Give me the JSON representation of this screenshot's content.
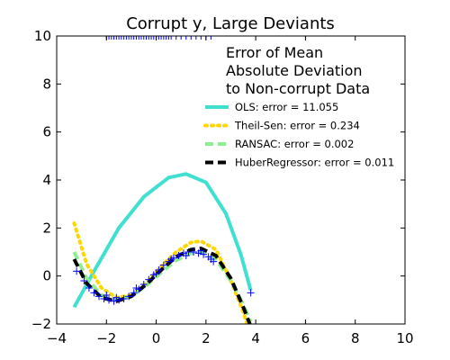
{
  "chart_data": {
    "type": "line",
    "title": "Corrupt y, Large Deviants",
    "xlabel": "",
    "ylabel": "",
    "xlim": [
      -4,
      10
    ],
    "ylim": [
      -2,
      10
    ],
    "xticks": [
      -4,
      -2,
      0,
      2,
      4,
      6,
      8,
      10
    ],
    "yticks": [
      -2,
      0,
      2,
      4,
      6,
      8,
      10
    ],
    "grid": false,
    "legend": {
      "title": "Error of Mean\nAbsolute Deviation\nto Non-corrupt Data",
      "placement": "upper-right"
    },
    "series": [
      {
        "name": "OLS: error = 11.055",
        "style": "solid",
        "color": "#40e0d0",
        "x": [
          -3.3,
          -2.5,
          -1.5,
          -0.5,
          0.5,
          1.2,
          2.0,
          2.8,
          3.4,
          3.8
        ],
        "y": [
          -1.3,
          0.2,
          2.0,
          3.3,
          4.1,
          4.25,
          3.9,
          2.6,
          0.9,
          -0.6
        ]
      },
      {
        "name": "Theil-Sen: error = 0.234",
        "style": "dotted",
        "color": "#ffd700",
        "x": [
          -3.3,
          -2.8,
          -2.2,
          -1.6,
          -1.0,
          -0.4,
          0.2,
          0.8,
          1.4,
          1.8,
          2.4,
          3.0,
          3.5,
          3.8
        ],
        "y": [
          2.2,
          0.5,
          -0.5,
          -0.9,
          -0.8,
          -0.3,
          0.4,
          1.0,
          1.4,
          1.45,
          1.1,
          -0.2,
          -1.5,
          -2.5
        ]
      },
      {
        "name": "RANSAC: error = 0.002",
        "style": "dashed",
        "color": "#90ee90",
        "x": [
          -3.3,
          -2.8,
          -2.2,
          -1.6,
          -1.0,
          -0.4,
          0.2,
          0.8,
          1.4,
          1.8,
          2.4,
          3.0,
          3.5,
          3.8
        ],
        "y": [
          1.0,
          -0.1,
          -0.8,
          -1.0,
          -0.85,
          -0.4,
          0.15,
          0.65,
          0.95,
          1.0,
          0.7,
          -0.2,
          -1.2,
          -1.9
        ]
      },
      {
        "name": "HuberRegressor: error = 0.011",
        "style": "dashed",
        "color": "#000000",
        "x": [
          -3.3,
          -2.8,
          -2.2,
          -1.6,
          -1.0,
          -0.4,
          0.2,
          0.8,
          1.4,
          1.8,
          2.4,
          3.0,
          3.5,
          3.8
        ],
        "y": [
          0.7,
          -0.3,
          -0.9,
          -1.05,
          -0.85,
          -0.35,
          0.25,
          0.8,
          1.1,
          1.15,
          0.85,
          -0.1,
          -1.3,
          -2.1
        ]
      }
    ],
    "scatter": {
      "marker": "+",
      "color": "#0000ff",
      "points": [
        [
          -3.2,
          0.2
        ],
        [
          -2.9,
          -0.2
        ],
        [
          -2.7,
          -0.5
        ],
        [
          -2.5,
          -0.7
        ],
        [
          -2.3,
          -0.85
        ],
        [
          -2.1,
          -0.95
        ],
        [
          -1.9,
          -1.0
        ],
        [
          -1.7,
          -1.05
        ],
        [
          -1.5,
          -1.0
        ],
        [
          -1.3,
          -0.95
        ],
        [
          -1.1,
          -0.85
        ],
        [
          -0.9,
          -0.7
        ],
        [
          -0.7,
          -0.55
        ],
        [
          -0.5,
          -0.35
        ],
        [
          -0.3,
          -0.15
        ],
        [
          -0.1,
          0.05
        ],
        [
          0.1,
          0.25
        ],
        [
          0.3,
          0.45
        ],
        [
          0.5,
          0.6
        ],
        [
          0.7,
          0.75
        ],
        [
          0.9,
          0.85
        ],
        [
          1.1,
          0.95
        ],
        [
          1.3,
          1.0
        ],
        [
          1.5,
          1.0
        ],
        [
          1.7,
          0.95
        ],
        [
          1.9,
          0.9
        ],
        [
          2.1,
          0.8
        ],
        [
          2.3,
          0.6
        ],
        [
          -2.0,
          -0.8
        ],
        [
          -1.6,
          -0.9
        ],
        [
          -0.8,
          -0.5
        ],
        [
          0.0,
          0.1
        ],
        [
          0.6,
          0.7
        ],
        [
          1.2,
          0.85
        ],
        [
          1.8,
          1.05
        ],
        [
          2.2,
          0.7
        ],
        [
          3.8,
          -0.7
        ],
        [
          -2.0,
          10.0
        ],
        [
          -1.9,
          10.0
        ],
        [
          -1.8,
          10.0
        ],
        [
          -1.7,
          10.0
        ],
        [
          -1.6,
          10.0
        ],
        [
          -1.5,
          10.0
        ],
        [
          -1.4,
          10.0
        ],
        [
          -1.3,
          10.0
        ],
        [
          -1.2,
          10.0
        ],
        [
          -1.1,
          10.0
        ],
        [
          -1.0,
          10.0
        ],
        [
          -0.9,
          10.0
        ],
        [
          -0.8,
          10.0
        ],
        [
          -0.7,
          10.0
        ],
        [
          -0.6,
          10.0
        ],
        [
          -0.5,
          10.0
        ],
        [
          -0.4,
          10.0
        ],
        [
          -0.3,
          10.0
        ],
        [
          -0.2,
          10.0
        ],
        [
          -0.1,
          10.0
        ],
        [
          0.0,
          10.0
        ],
        [
          0.1,
          10.0
        ],
        [
          0.2,
          10.0
        ],
        [
          0.3,
          10.0
        ],
        [
          0.4,
          10.0
        ],
        [
          0.5,
          10.0
        ],
        [
          0.6,
          10.0
        ],
        [
          0.8,
          10.0
        ],
        [
          1.0,
          10.0
        ],
        [
          1.2,
          10.0
        ],
        [
          1.4,
          10.0
        ],
        [
          1.6,
          10.0
        ],
        [
          1.8,
          10.0
        ],
        [
          2.0,
          10.0
        ],
        [
          2.2,
          10.0
        ]
      ]
    }
  }
}
